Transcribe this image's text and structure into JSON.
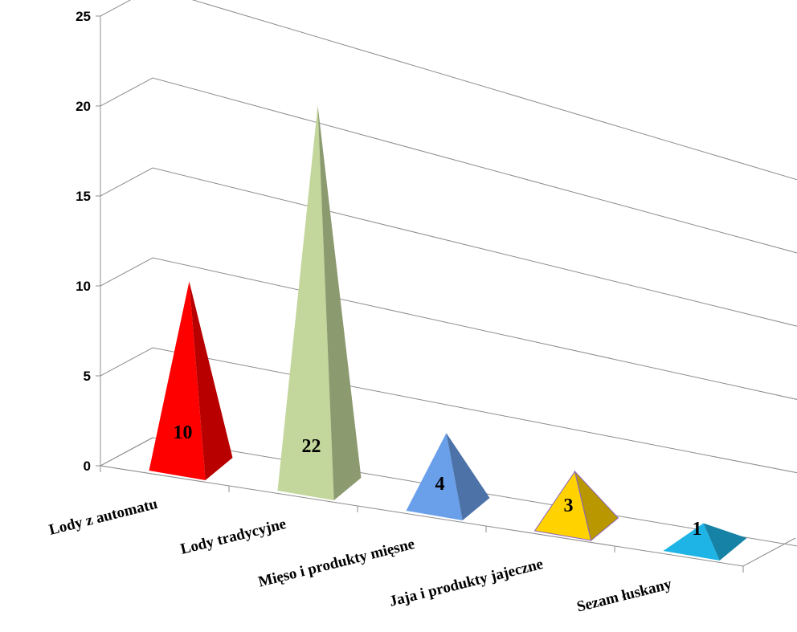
{
  "chart_data": {
    "type": "bar",
    "style": "3d-pyramid",
    "title": "",
    "xlabel": "",
    "ylabel": "",
    "ylim": [
      0,
      25
    ],
    "yticks": [
      0,
      5,
      10,
      15,
      20,
      25
    ],
    "grid": true,
    "legend": "none",
    "categories": [
      "Lody z automatu",
      "Lody tradycyjne",
      "Mięso i produkty mięsne",
      "Jaja i produkty jajeczne",
      "Sezam łuskany"
    ],
    "series": [
      {
        "values": [
          10,
          22,
          4,
          3,
          1
        ],
        "data_labels": [
          "10",
          "22",
          "4",
          "3",
          "1"
        ],
        "colors": [
          "#ff0000",
          "#c3d69b",
          "#6a9fea",
          "#ffd200",
          "#1fb4e6"
        ]
      }
    ]
  }
}
